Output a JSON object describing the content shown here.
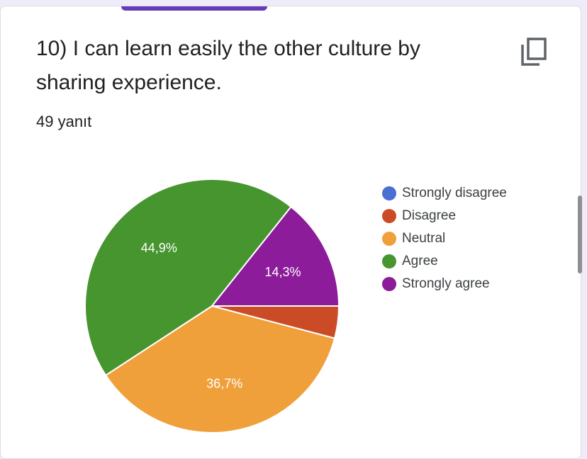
{
  "question": {
    "title": "10) I can learn easily the other culture by sharing experience.",
    "response_count": "49 yanıt"
  },
  "toolbar": {
    "copy_icon": "copy-icon"
  },
  "chart_data": {
    "type": "pie",
    "categories": [
      "Strongly disagree",
      "Disagree",
      "Neutral",
      "Agree",
      "Strongly agree"
    ],
    "values": [
      0.0,
      4.1,
      36.7,
      44.9,
      14.3
    ],
    "labels": [
      "",
      "",
      "36,7%",
      "44,9%",
      "14,3%"
    ],
    "colors": [
      "#3366cc",
      "#dc3912",
      "#ff9900",
      "#109618",
      "#990099"
    ],
    "display_colors": [
      "#4a6fd3",
      "#cc4b27",
      "#f0a03b",
      "#46952f",
      "#8c1c99"
    ],
    "legend_position": "right"
  }
}
